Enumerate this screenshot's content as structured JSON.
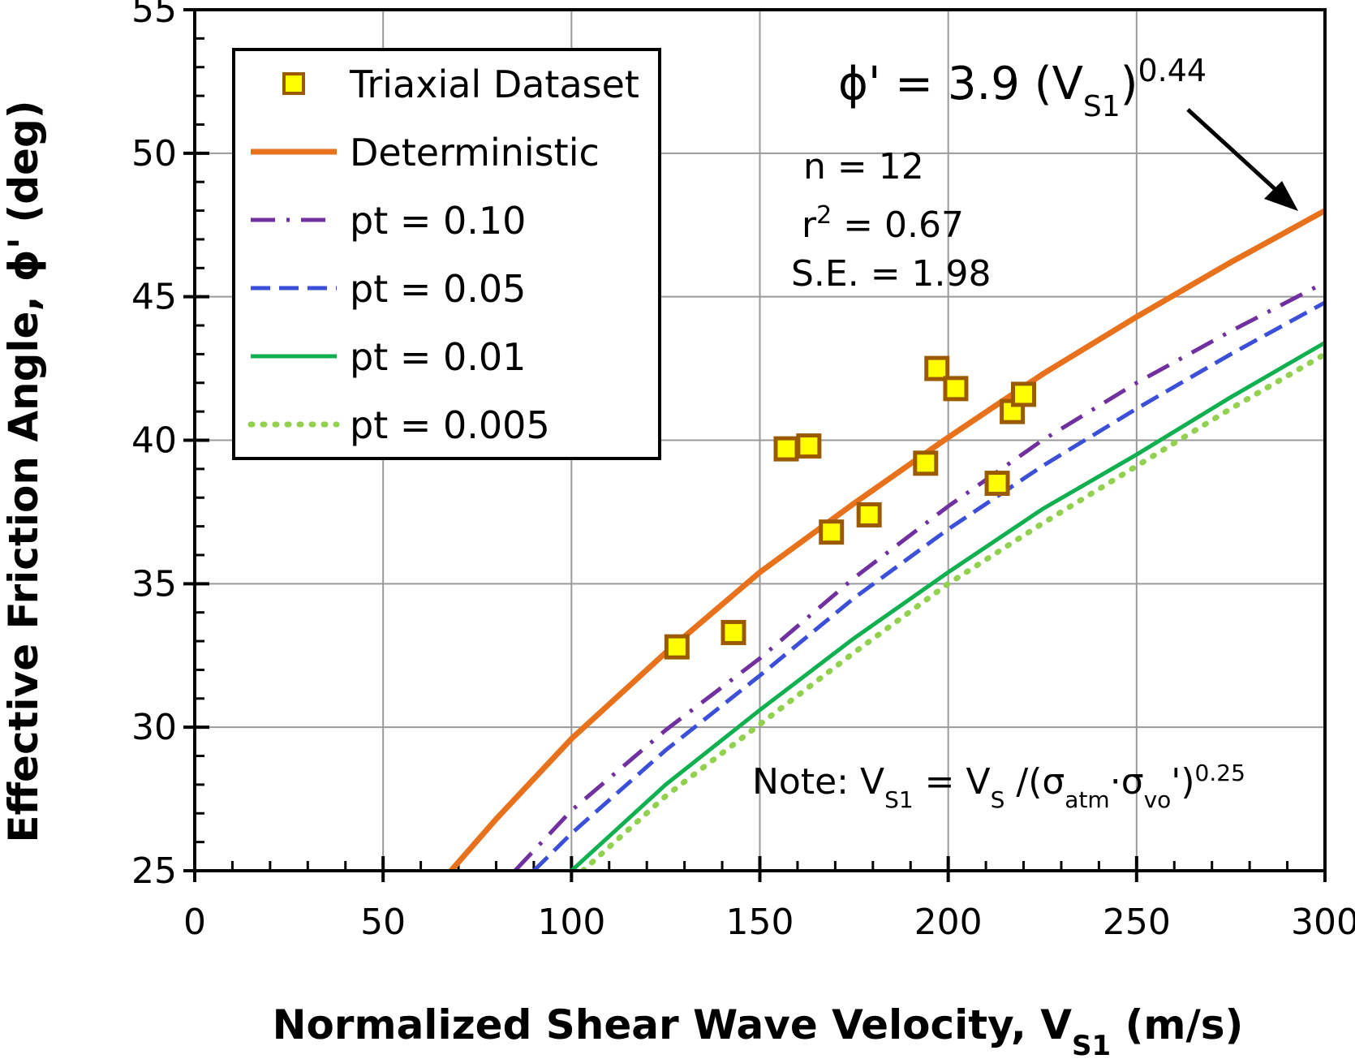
{
  "chart_data": {
    "type": "combo",
    "x_label": [
      "Normalized  Shear Wave Velocity, V",
      "S1",
      "  (m/s)"
    ],
    "y_label": "Effective Friction Angle, ϕ' (deg)",
    "xlim": [
      0,
      300
    ],
    "ylim": [
      25,
      55
    ],
    "xticks": [
      0,
      50,
      100,
      150,
      200,
      250,
      300
    ],
    "yticks": [
      25,
      30,
      35,
      40,
      45,
      50,
      55
    ],
    "xminorticks": [
      10,
      20,
      30,
      40,
      60,
      70,
      80,
      90,
      110,
      120,
      130,
      140,
      160,
      170,
      180,
      190,
      210,
      220,
      230,
      240,
      260,
      270,
      280,
      290
    ],
    "yminorticks": [
      26,
      27,
      28,
      29,
      31,
      32,
      33,
      34,
      36,
      37,
      38,
      39,
      41,
      42,
      43,
      44,
      46,
      47,
      48,
      49,
      51,
      52,
      53,
      54
    ],
    "grid": true,
    "legend": "upper left",
    "series": [
      {
        "name": "Triaxial Dataset",
        "type": "scatter",
        "color": "#ffff00",
        "edge_color": "#9c5a00",
        "x": [
          128,
          143,
          157,
          163,
          169,
          179,
          194,
          197,
          202,
          213,
          217,
          220
        ],
        "values": [
          32.8,
          33.3,
          39.7,
          39.8,
          36.8,
          37.4,
          39.2,
          42.5,
          41.8,
          38.5,
          41.0,
          41.6
        ]
      },
      {
        "name": "Deterministic",
        "type": "line",
        "style": "solid",
        "color": "#e8711b",
        "x": [
          68,
          80,
          100,
          125,
          150,
          175,
          200,
          225,
          250,
          275,
          300
        ],
        "values": [
          25.0,
          26.8,
          29.6,
          32.6,
          35.4,
          37.8,
          40.1,
          42.3,
          44.3,
          46.2,
          48.0
        ]
      },
      {
        "name": "pt = 0.10",
        "type": "line",
        "style": "dashdot",
        "color": "#7030a0",
        "x": [
          85,
          100,
          125,
          150,
          175,
          200,
          225,
          250,
          275,
          300
        ],
        "values": [
          25.0,
          27.1,
          29.9,
          32.4,
          35.2,
          37.7,
          40.0,
          42.0,
          43.8,
          45.5
        ]
      },
      {
        "name": "pt = 0.05",
        "type": "line",
        "style": "dash",
        "color": "#3c4fd8",
        "x": [
          90,
          100,
          125,
          150,
          175,
          200,
          225,
          250,
          275,
          300
        ],
        "values": [
          25.0,
          26.3,
          29.2,
          31.8,
          34.5,
          36.9,
          39.1,
          41.1,
          43.0,
          44.8
        ]
      },
      {
        "name": "pt = 0.01",
        "type": "line",
        "style": "solid",
        "color": "#10b050",
        "x": [
          100,
          125,
          150,
          175,
          200,
          225,
          250,
          275,
          300
        ],
        "values": [
          25.0,
          28.0,
          30.6,
          33.1,
          35.4,
          37.6,
          39.5,
          41.5,
          43.4
        ]
      },
      {
        "name": "pt = 0.005",
        "type": "line",
        "style": "dot",
        "color": "#92d050",
        "x": [
          103,
          125,
          150,
          175,
          200,
          225,
          250,
          275,
          300
        ],
        "values": [
          25.0,
          27.6,
          30.1,
          32.6,
          35.0,
          37.1,
          39.1,
          41.1,
          43.0
        ]
      }
    ],
    "annotations": {
      "equation": [
        "ϕ'  = 3.9 (V",
        "S1",
        ")",
        "0.44"
      ],
      "n": "n = 12",
      "r2": [
        "r",
        "2",
        " = 0.67"
      ],
      "se": "S.E. = 1.98",
      "note": [
        "Note: V",
        "S1",
        " = V",
        "S",
        " /(σ",
        "atm",
        "·σ",
        "vo",
        "')",
        "0.25"
      ]
    }
  }
}
